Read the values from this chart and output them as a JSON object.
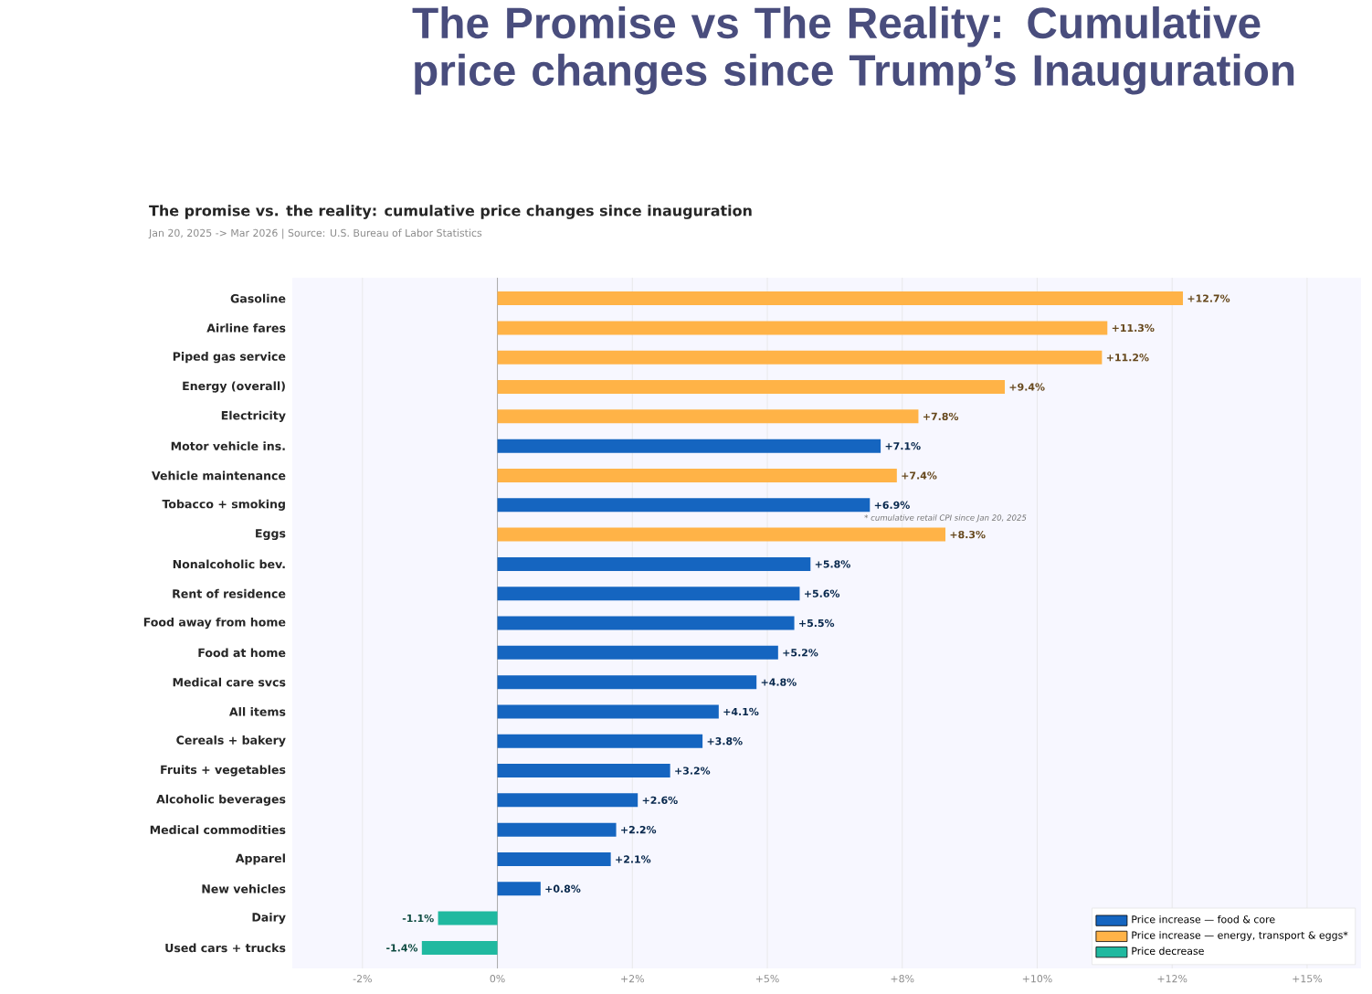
{
  "chart_data": {
    "type": "bar",
    "orientation": "horizontal",
    "title": "The Promise vs The Reality: Cumulative price changes since Trump’s Inauguration",
    "subtitle": "The promise vs. the reality: cumulative price changes since inauguration",
    "annotations": [
      "Jan 20, 2025 -> Mar 2026  |  Source: U.S. Bureau of Labor Statistics",
      {
        "text": "* cumulative retail CPI since Jan 20, 2025",
        "x": 8.3,
        "y": "Eggs"
      }
    ],
    "categories": [
      "Gasoline",
      "Airline fares",
      "Piped gas service",
      "Energy (overall)",
      "Electricity",
      "Motor vehicle ins.",
      "Vehicle maintenance",
      "Tobacco + smoking",
      "Eggs",
      "Nonalcoholic bev.",
      "Rent of residence",
      "Food away from home",
      "Food at home",
      "Medical care svcs",
      "All items",
      "Cereals + bakery",
      "Fruits + vegetables",
      "Alcoholic beverages",
      "Medical commodities",
      "Apparel",
      "New vehicles",
      "Dairy",
      "Used cars + trucks"
    ],
    "series": [
      {
        "name": "Price increase — food & core",
        "color": "#1565c0",
        "values": [
          null,
          null,
          null,
          null,
          null,
          7.1,
          null,
          6.9,
          null,
          5.8,
          5.6,
          5.5,
          5.2,
          4.8,
          4.1,
          3.8,
          3.2,
          2.6,
          2.2,
          2.1,
          0.8,
          null,
          null
        ],
        "value_labels": [
          null,
          null,
          null,
          null,
          null,
          "+7.1%",
          null,
          "+6.9%",
          null,
          "+5.8%",
          "+5.6%",
          "+5.5%",
          "+5.2%",
          "+4.8%",
          "+4.1%",
          "+3.8%",
          "+3.2%",
          "+2.6%",
          "+2.2%",
          "+2.1%",
          "+0.8%",
          null,
          null
        ]
      },
      {
        "name": "Price increase — energy, transport & eggs*",
        "color": "#ffb347",
        "values": [
          12.7,
          11.3,
          11.2,
          9.4,
          7.8,
          null,
          7.4,
          null,
          8.3,
          null,
          null,
          null,
          null,
          null,
          null,
          null,
          null,
          null,
          null,
          null,
          null,
          null,
          null
        ],
        "value_labels": [
          "+12.7%",
          "+11.3%",
          "+11.2%",
          "+9.4%",
          "+7.8%",
          null,
          "+7.4%",
          null,
          "+8.3%",
          null,
          null,
          null,
          null,
          null,
          null,
          null,
          null,
          null,
          null,
          null,
          null,
          null,
          null
        ]
      },
      {
        "name": "Price decrease",
        "color": "#20b9a0",
        "values": [
          null,
          null,
          null,
          null,
          null,
          null,
          null,
          null,
          null,
          null,
          null,
          null,
          null,
          null,
          null,
          null,
          null,
          null,
          null,
          null,
          null,
          -1.1,
          -1.4
        ],
        "value_labels": [
          null,
          null,
          null,
          null,
          null,
          null,
          null,
          null,
          null,
          null,
          null,
          null,
          null,
          null,
          null,
          null,
          null,
          null,
          null,
          null,
          null,
          "-1.1%",
          "-1.4%"
        ]
      }
    ],
    "xlim": [
      -3.8,
      16
    ],
    "xticks": [
      {
        "value": -2.5,
        "label": "-2%"
      },
      {
        "value": 0,
        "label": "0%"
      },
      {
        "value": 2.5,
        "label": "+2%"
      },
      {
        "value": 5,
        "label": "+5%"
      },
      {
        "value": 7.5,
        "label": "+8%"
      },
      {
        "value": 10,
        "label": "+10%"
      },
      {
        "value": 12.5,
        "label": "+12%"
      },
      {
        "value": 15,
        "label": "+15%"
      }
    ],
    "grid": "x",
    "legend": "bottom right"
  }
}
